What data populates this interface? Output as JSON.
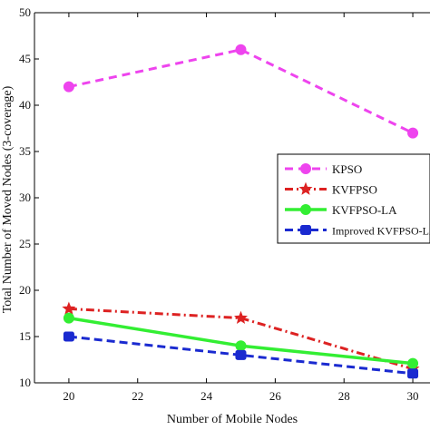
{
  "chart_data": {
    "type": "line",
    "title": "",
    "xlabel": "Number of  Mobile Nodes",
    "ylabel": "Total Number of Moved Nodes (3-coverage)",
    "xlim": [
      19,
      30.5
    ],
    "ylim": [
      10,
      50
    ],
    "xticks": [
      20,
      22,
      24,
      26,
      28,
      30
    ],
    "yticks": [
      10,
      15,
      20,
      25,
      30,
      35,
      40,
      45,
      50
    ],
    "grid": false,
    "legend_position": "right",
    "series": [
      {
        "name": "KPSO",
        "x": [
          20,
          25,
          30
        ],
        "y": [
          42,
          46,
          37
        ],
        "color": "#ee44ee",
        "dash": "9,6",
        "marker": "circle",
        "width": 3
      },
      {
        "name": "KVFPSO",
        "x": [
          20,
          25,
          30
        ],
        "y": [
          18,
          17,
          11.5
        ],
        "color": "#dd2222",
        "dash": "9,4,2,4",
        "marker": "star",
        "width": 3
      },
      {
        "name": "KVFPSO-LA",
        "x": [
          20,
          25,
          30
        ],
        "y": [
          17,
          14,
          12.1
        ],
        "color": "#33ee33",
        "dash": "",
        "marker": "circle",
        "width": 3.5
      },
      {
        "name": "Improved KVFPSO-LA",
        "x": [
          20,
          25,
          30
        ],
        "y": [
          15,
          13,
          11
        ],
        "color": "#1a2ad0",
        "dash": "9,5",
        "marker": "square",
        "width": 3
      }
    ]
  }
}
